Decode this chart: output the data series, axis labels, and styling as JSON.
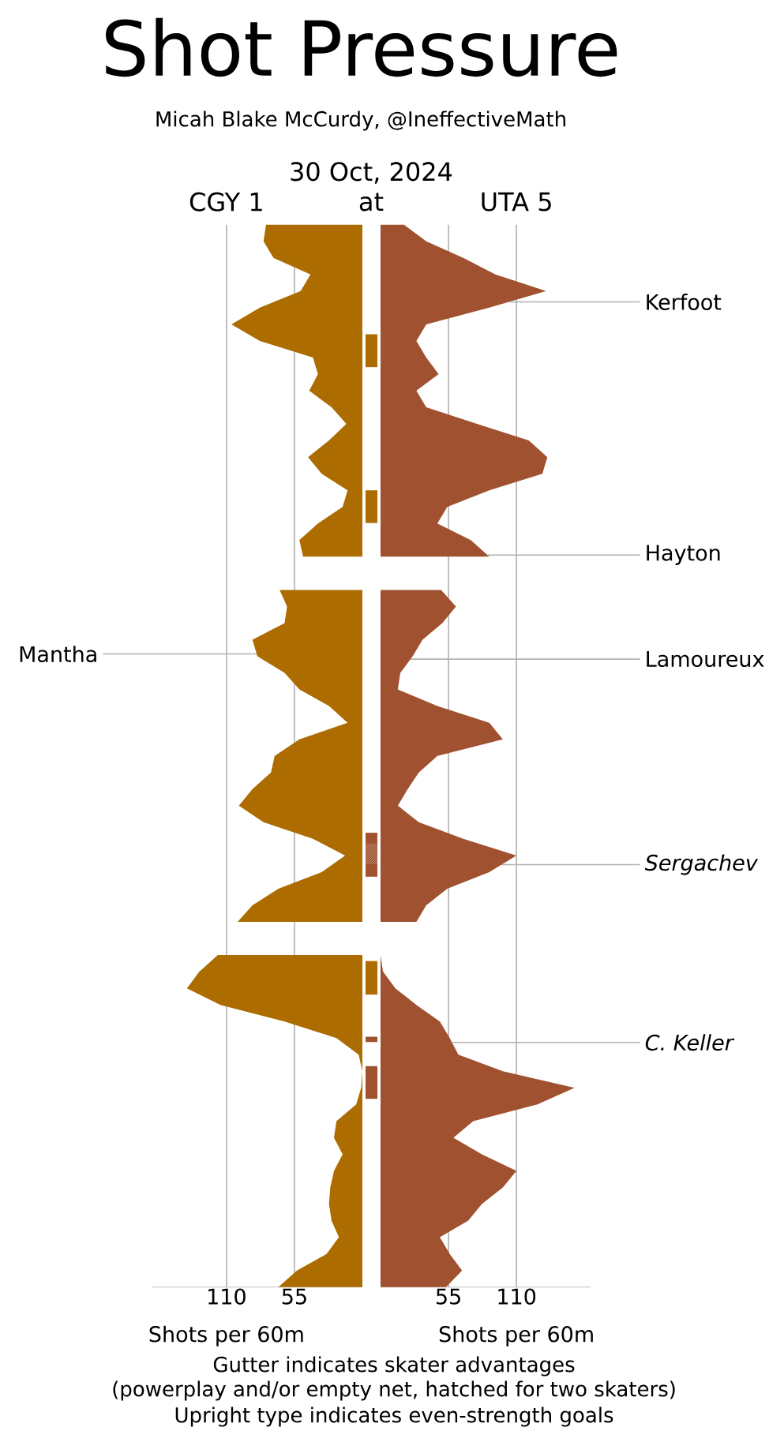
{
  "chart_data": [
    {
      "type": "other",
      "title": "Shot Pressure",
      "subtitle": "Micah Blake McCurdy, @IneffectiveMath",
      "annotations": [
        "30 Oct, 2024",
        "at",
        "Gutter indicates skater advantages",
        "(powerplay and/or empty net, hatched for two skaters)",
        "Upright type indicates even-strength goals"
      ]
    },
    {
      "type": "area",
      "orientation": "horizontal",
      "title": "CGY 1",
      "xlabel": "Shots per 60m",
      "xlim": [
        170,
        0
      ],
      "xticks": [
        110,
        55
      ],
      "grid": "x",
      "categories": [
        null,
        null,
        null,
        null,
        null,
        null,
        null,
        null,
        null,
        null,
        null,
        null,
        null,
        null,
        null,
        null,
        null,
        null,
        null,
        null,
        null,
        null,
        null,
        null,
        null,
        null,
        null,
        null,
        null,
        null,
        null,
        null,
        null,
        null,
        null,
        null,
        null,
        null,
        null,
        null,
        null,
        null,
        null,
        null,
        null,
        null,
        null,
        null,
        null,
        null,
        null,
        null,
        null,
        null,
        null,
        null,
        null,
        null,
        null,
        null,
        null,
        null,
        null,
        null,
        null
      ],
      "series": [
        {
          "color": "#ac6c00",
          "values": [
            78,
            80,
            72,
            42,
            50,
            83,
            106,
            83,
            40,
            36,
            43,
            25,
            13,
            27,
            44,
            33,
            12,
            16,
            36,
            51,
            48,
            null,
            67,
            61,
            63,
            89,
            85,
            63,
            51,
            27,
            12,
            51,
            71,
            74,
            89,
            100,
            80,
            40,
            14,
            33,
            68,
            89,
            101,
            null,
            117,
            132,
            142,
            115,
            63,
            21,
            3,
            0,
            1,
            5,
            21,
            23,
            16,
            23,
            26,
            27,
            25,
            19,
            29,
            53,
            68
          ]
        }
      ],
      "annotations": [
        "Mantha"
      ]
    },
    {
      "type": "area",
      "orientation": "horizontal",
      "title": "UTA 5",
      "xlabel": "Shots per 60m",
      "xlim": [
        0,
        170
      ],
      "xticks": [
        55,
        110
      ],
      "grid": "x",
      "categories": [
        null,
        null,
        null,
        null,
        null,
        null,
        null,
        null,
        null,
        null,
        null,
        null,
        null,
        null,
        null,
        null,
        null,
        null,
        null,
        null,
        null,
        null,
        null,
        null,
        null,
        null,
        null,
        null,
        null,
        null,
        null,
        null,
        null,
        null,
        null,
        null,
        null,
        null,
        null,
        null,
        null,
        null,
        null,
        null,
        null,
        null,
        null,
        null,
        null,
        null,
        null,
        null,
        null,
        null,
        null,
        null,
        null,
        null,
        null,
        null,
        null,
        null,
        null,
        null,
        null
      ],
      "series": [
        {
          "color": "#a05230",
          "values": [
            19,
            37,
            67,
            93,
            134,
            88,
            37,
            29,
            37,
            47,
            29,
            37,
            78,
            120,
            135,
            131,
            88,
            54,
            46,
            73,
            88,
            null,
            49,
            61,
            50,
            34,
            26,
            16,
            14,
            46,
            88,
            99,
            46,
            31,
            22,
            14,
            31,
            67,
            110,
            88,
            54,
            37,
            29,
            null,
            0,
            2,
            12,
            29,
            48,
            56,
            63,
            99,
            157,
            127,
            75,
            59,
            82,
            110,
            99,
            82,
            71,
            48,
            56,
            66,
            53
          ]
        }
      ],
      "annotations": [
        "Kerfoot",
        "Hayton",
        "Lamoureux",
        "*Sergachev*",
        "*C. Keller*"
      ]
    }
  ]
}
